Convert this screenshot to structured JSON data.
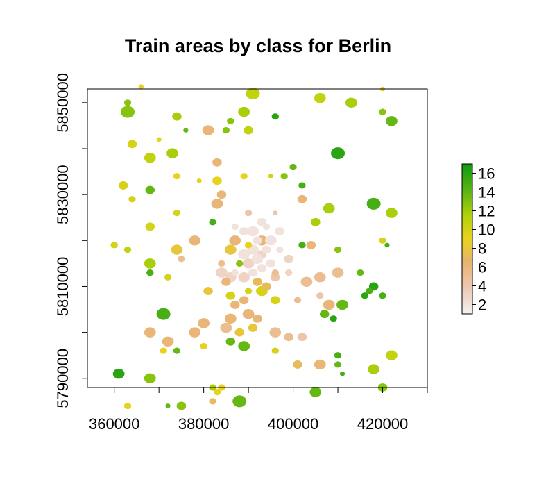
{
  "chart_data": {
    "type": "scatter",
    "title": "Train areas by class for Berlin",
    "xlabel": "",
    "ylabel": "",
    "xlim": [
      354000,
      430000
    ],
    "ylim": [
      5788000,
      5853000
    ],
    "x_ticks": [
      360000,
      380000,
      400000,
      420000
    ],
    "y_ticks": [
      5790000,
      5810000,
      5830000,
      5850000
    ],
    "x_tick_labels": [
      "360000",
      "380000",
      "400000",
      "420000"
    ],
    "y_tick_labels": [
      "5790000",
      "5810000",
      "5830000",
      "5850000"
    ],
    "grid": false,
    "legend": {
      "type": "colorbar",
      "position": "right",
      "range": [
        1,
        17
      ],
      "ticks": [
        2,
        4,
        6,
        8,
        10,
        12,
        14,
        16
      ],
      "tick_labels": [
        "2",
        "4",
        "6",
        "8",
        "10",
        "12",
        "14",
        "16"
      ],
      "colors": [
        "#f2f2f2",
        "#eec8b6",
        "#e8b36e",
        "#e8d21e",
        "#b4d20a",
        "#5ab414",
        "#0c9a10"
      ]
    },
    "points": [
      [
        366,
        5853.5,
        9,
        1
      ],
      [
        391,
        5852,
        11,
        5
      ],
      [
        406,
        5851,
        11,
        4
      ],
      [
        420,
        5853,
        9,
        1
      ],
      [
        363,
        5850,
        13,
        2
      ],
      [
        363,
        5848,
        13,
        5
      ],
      [
        374,
        5847,
        12,
        3
      ],
      [
        389,
        5848,
        12,
        4
      ],
      [
        396,
        5847,
        16,
        2
      ],
      [
        413,
        5850,
        12,
        4
      ],
      [
        420,
        5848,
        13,
        2
      ],
      [
        422,
        5846,
        14,
        4
      ],
      [
        376,
        5844,
        14,
        1
      ],
      [
        381,
        5844,
        6,
        4
      ],
      [
        385,
        5844,
        13,
        2
      ],
      [
        386,
        5846,
        13,
        2
      ],
      [
        390,
        5844,
        11,
        3
      ],
      [
        364,
        5841,
        10,
        3
      ],
      [
        370,
        5842,
        9,
        1
      ],
      [
        368,
        5838,
        11,
        4
      ],
      [
        373,
        5839,
        12,
        4
      ],
      [
        383,
        5837,
        6,
        3
      ],
      [
        410,
        5839,
        16,
        5
      ],
      [
        362,
        5832,
        10,
        3
      ],
      [
        364,
        5829,
        10,
        2
      ],
      [
        368,
        5831,
        14,
        3
      ],
      [
        374,
        5834,
        9,
        2
      ],
      [
        379,
        5833,
        9,
        1
      ],
      [
        383,
        5833,
        9,
        3
      ],
      [
        384,
        5830,
        6,
        3
      ],
      [
        389,
        5834,
        9,
        2
      ],
      [
        395,
        5834,
        10,
        1
      ],
      [
        398,
        5834,
        13,
        2
      ],
      [
        400,
        5836,
        14,
        2
      ],
      [
        402,
        5832,
        15,
        2
      ],
      [
        383,
        5828,
        6,
        4
      ],
      [
        374,
        5826,
        10,
        2
      ],
      [
        368,
        5823,
        10,
        3
      ],
      [
        382,
        5824,
        15,
        2
      ],
      [
        390,
        5826,
        4,
        2
      ],
      [
        396,
        5826,
        4,
        1
      ],
      [
        402,
        5829,
        6,
        3
      ],
      [
        408,
        5827,
        12,
        4
      ],
      [
        405,
        5824,
        12,
        3
      ],
      [
        418,
        5828,
        15,
        5
      ],
      [
        422,
        5826,
        12,
        4
      ],
      [
        378,
        5820,
        6,
        4
      ],
      [
        387,
        5820,
        6,
        4
      ],
      [
        393,
        5820,
        6,
        4
      ],
      [
        402,
        5819,
        15,
        2
      ],
      [
        404,
        5819,
        6,
        3
      ],
      [
        374,
        5818,
        8,
        4
      ],
      [
        386,
        5818,
        8,
        4
      ],
      [
        410,
        5818,
        13,
        2
      ],
      [
        420,
        5820,
        10,
        2
      ],
      [
        421,
        5819,
        15,
        1
      ],
      [
        360,
        5819,
        10,
        2
      ],
      [
        363,
        5818,
        11,
        2
      ],
      [
        368,
        5815,
        12,
        4
      ],
      [
        375,
        5816,
        5,
        2
      ],
      [
        384,
        5815,
        5,
        2
      ],
      [
        390,
        5815,
        3,
        4
      ],
      [
        393,
        5817,
        3,
        3
      ],
      [
        396,
        5812,
        4,
        3
      ],
      [
        399,
        5816,
        3,
        3
      ],
      [
        403,
        5811,
        5,
        4
      ],
      [
        406,
        5812,
        5,
        4
      ],
      [
        410,
        5813,
        5,
        4
      ],
      [
        418,
        5810,
        16,
        3
      ],
      [
        415,
        5813,
        14,
        2
      ],
      [
        420,
        5808,
        15,
        2
      ],
      [
        368,
        5813,
        15,
        2
      ],
      [
        372,
        5812,
        10,
        2
      ],
      [
        381,
        5809,
        8,
        3
      ],
      [
        386,
        5808,
        10,
        3
      ],
      [
        384,
        5813,
        3,
        4
      ],
      [
        386,
        5812,
        3,
        4
      ],
      [
        389,
        5812,
        3,
        4
      ],
      [
        390,
        5809,
        10,
        2
      ],
      [
        393,
        5809,
        10,
        4
      ],
      [
        396,
        5807,
        10,
        3
      ],
      [
        401,
        5807,
        5,
        2
      ],
      [
        406,
        5808,
        4,
        2
      ],
      [
        408,
        5806,
        6,
        4
      ],
      [
        411,
        5806,
        14,
        4
      ],
      [
        407,
        5804,
        14,
        3
      ],
      [
        409,
        5803,
        16,
        2
      ],
      [
        371,
        5804,
        15,
        5
      ],
      [
        380,
        5802,
        6,
        4
      ],
      [
        385,
        5801,
        5,
        4
      ],
      [
        388,
        5800,
        8,
        3
      ],
      [
        391,
        5801,
        8,
        3
      ],
      [
        396,
        5800,
        5,
        4
      ],
      [
        399,
        5799,
        5,
        3
      ],
      [
        402,
        5799,
        4,
        3
      ],
      [
        389,
        5797,
        14,
        4
      ],
      [
        386,
        5798,
        14,
        3
      ],
      [
        368,
        5800,
        6,
        4
      ],
      [
        372,
        5798,
        6,
        4
      ],
      [
        378,
        5800,
        6,
        4
      ],
      [
        386,
        5803,
        6,
        4
      ],
      [
        390,
        5804,
        6,
        4
      ],
      [
        392,
        5803,
        6,
        3
      ],
      [
        371,
        5796,
        9,
        2
      ],
      [
        374,
        5796,
        14,
        2
      ],
      [
        380,
        5797,
        9,
        2
      ],
      [
        396,
        5796,
        10,
        2
      ],
      [
        401,
        5793,
        7,
        3
      ],
      [
        406,
        5793,
        6,
        4
      ],
      [
        410,
        5793,
        14,
        2
      ],
      [
        410,
        5795,
        15,
        2
      ],
      [
        411,
        5791,
        15,
        1
      ],
      [
        418,
        5792,
        12,
        4
      ],
      [
        422,
        5795,
        11,
        4
      ],
      [
        361,
        5791,
        16,
        4
      ],
      [
        368,
        5790,
        13,
        4
      ],
      [
        363,
        5784,
        9,
        2
      ],
      [
        372,
        5784,
        14,
        1
      ],
      [
        375,
        5784,
        13,
        3
      ],
      [
        382,
        5785,
        7,
        2
      ],
      [
        383,
        5787,
        9,
        2
      ],
      [
        388,
        5785,
        14,
        5
      ],
      [
        405,
        5787,
        14,
        4
      ],
      [
        420,
        5788,
        13,
        3
      ],
      [
        382,
        5788,
        12,
        2
      ],
      [
        384,
        5788,
        9,
        2
      ],
      [
        389,
        5817,
        2,
        4
      ],
      [
        391,
        5818,
        2,
        4
      ],
      [
        392,
        5816,
        2,
        4
      ],
      [
        394,
        5818,
        2,
        3
      ],
      [
        392,
        5820,
        2,
        3
      ],
      [
        395,
        5820,
        2,
        4
      ],
      [
        397,
        5822,
        2,
        3
      ],
      [
        391,
        5822,
        2,
        4
      ],
      [
        393,
        5824,
        2,
        3
      ],
      [
        389,
        5822,
        2,
        3
      ],
      [
        387,
        5823,
        2,
        2
      ],
      [
        393,
        5814,
        2,
        3
      ],
      [
        391,
        5813,
        2,
        3
      ],
      [
        387,
        5813,
        2,
        2
      ],
      [
        395,
        5815,
        2,
        3
      ],
      [
        397,
        5818,
        2,
        2
      ],
      [
        392,
        5811,
        7,
        3
      ],
      [
        394,
        5810,
        7,
        3
      ],
      [
        389,
        5807,
        6,
        3
      ],
      [
        387,
        5806,
        6,
        3
      ],
      [
        388,
        5815,
        13,
        2
      ],
      [
        396,
        5813,
        5,
        2
      ],
      [
        394,
        5823,
        2,
        2
      ],
      [
        390,
        5819,
        9,
        2
      ],
      [
        399,
        5813,
        3,
        2
      ],
      [
        385,
        5811,
        6,
        3
      ],
      [
        416,
        5808,
        16,
        2
      ],
      [
        417,
        5809,
        15,
        2
      ]
    ]
  }
}
